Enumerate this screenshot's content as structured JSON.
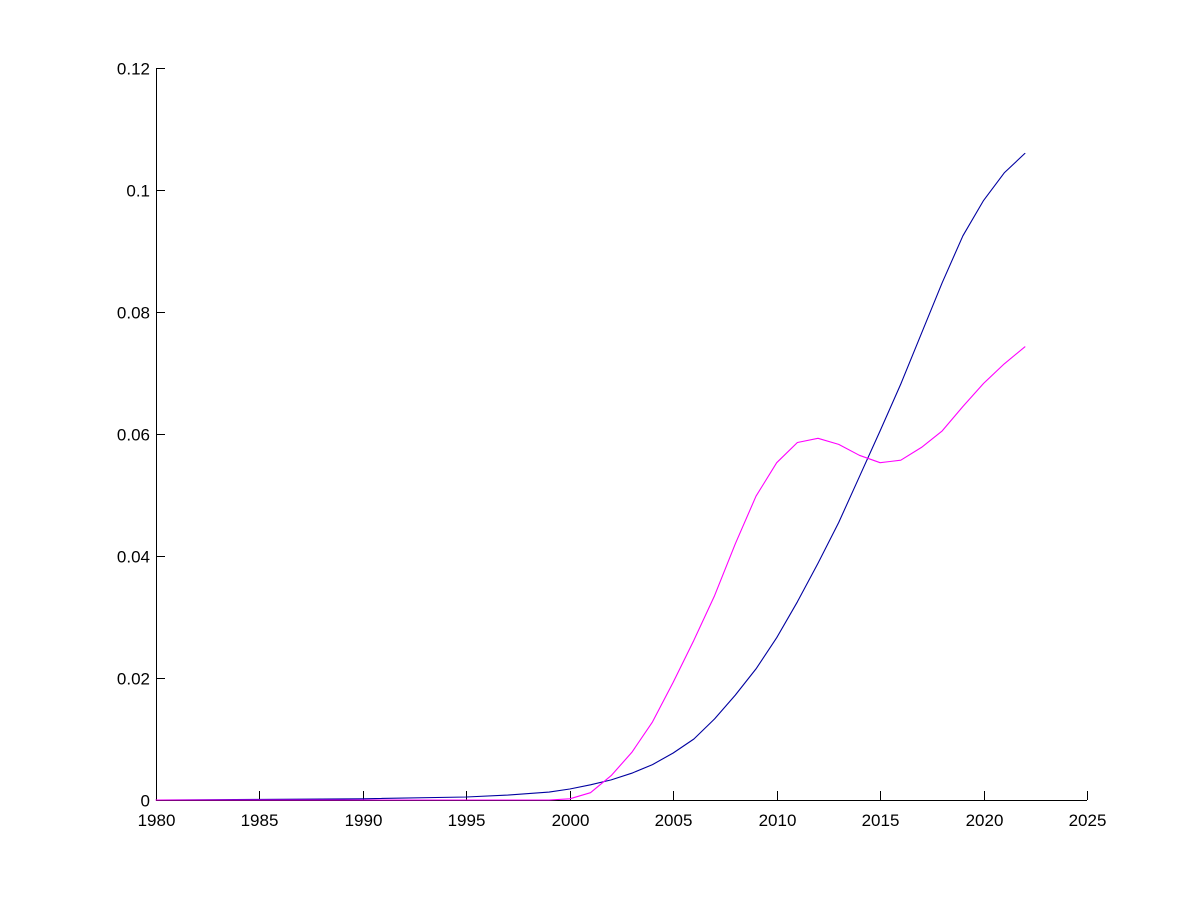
{
  "chart_data": {
    "type": "line",
    "title": "",
    "xlabel": "",
    "ylabel": "",
    "xlim": [
      1980,
      2025
    ],
    "ylim": [
      0,
      0.12
    ],
    "x_ticks": [
      1980,
      1985,
      1990,
      1995,
      2000,
      2005,
      2010,
      2015,
      2020,
      2025
    ],
    "x_tick_labels": [
      "1980",
      "1985",
      "1990",
      "1995",
      "2000",
      "2005",
      "2010",
      "2015",
      "2020",
      "2025"
    ],
    "y_ticks": [
      0,
      0.02,
      0.04,
      0.06,
      0.08,
      0.1,
      0.12
    ],
    "y_tick_labels": [
      "0",
      "0.02",
      "0.04",
      "0.06",
      "0.08",
      "0.1",
      "0.12"
    ],
    "grid": false,
    "legend": "none",
    "series": [
      {
        "color": "#0000a0",
        "x": [
          1980,
          1985,
          1990,
          1995,
          1997,
          1999,
          2000,
          2001,
          2002,
          2003,
          2004,
          2005,
          2006,
          2007,
          2008,
          2009,
          2010,
          2011,
          2012,
          2013,
          2014,
          2015,
          2016,
          2017,
          2018,
          2019,
          2020,
          2021,
          2022
        ],
        "y": [
          0,
          0.0001,
          0.0002,
          0.0005,
          0.0008,
          0.0013,
          0.0018,
          0.0025,
          0.0033,
          0.0044,
          0.0058,
          0.0077,
          0.01,
          0.0133,
          0.0172,
          0.0215,
          0.0266,
          0.0325,
          0.0388,
          0.0455,
          0.053,
          0.0605,
          0.0682,
          0.0765,
          0.0848,
          0.0925,
          0.0983,
          0.1028,
          0.106
        ]
      },
      {
        "color": "#ff00ff",
        "x": [
          1980,
          1990,
          1999,
          2000,
          2001,
          2002,
          2003,
          2004,
          2005,
          2006,
          2007,
          2008,
          2009,
          2010,
          2011,
          2012,
          2013,
          2014,
          2015,
          2016,
          2017,
          2018,
          2019,
          2020,
          2021,
          2022
        ],
        "y": [
          0,
          0,
          0,
          0.0002,
          0.0012,
          0.004,
          0.0078,
          0.0128,
          0.0193,
          0.0262,
          0.0335,
          0.042,
          0.0498,
          0.0553,
          0.0586,
          0.0593,
          0.0583,
          0.0565,
          0.0553,
          0.0557,
          0.0578,
          0.0605,
          0.0645,
          0.0683,
          0.0715,
          0.0743
        ]
      }
    ]
  }
}
